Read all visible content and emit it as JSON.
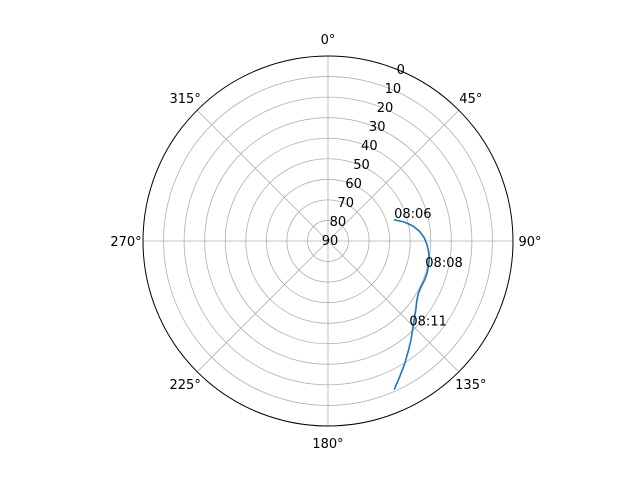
{
  "chart_data": {
    "type": "line",
    "projection": "polar",
    "theta_zero": "top",
    "theta_direction": "clockwise",
    "radial_axis": {
      "label": "",
      "inverted": true,
      "range": [
        90,
        0
      ],
      "ticks": [
        "0",
        "10",
        "20",
        "30",
        "40",
        "50",
        "60",
        "70",
        "80",
        "90"
      ],
      "tick_values": [
        0,
        10,
        20,
        30,
        40,
        50,
        60,
        70,
        80,
        90
      ]
    },
    "angular_axis": {
      "label": "",
      "tick_values": [
        0,
        45,
        90,
        135,
        180,
        225,
        270,
        315
      ],
      "tick_labels": [
        "0°",
        "45°",
        "90°",
        "135°",
        "180°",
        "225°",
        "270°",
        "315°"
      ]
    },
    "grid": true,
    "series": [
      {
        "color": "#1f77b4",
        "azimuth_deg": [
          72.0,
          76.0,
          80.0,
          84.0,
          88.0,
          92.0,
          96.0,
          100.0,
          104.0,
          108.0,
          112.0,
          116.0,
          120.0,
          124.0,
          128.0,
          132.0,
          136.0,
          140.0,
          144.0,
          148.0,
          152.0,
          156.0
        ],
        "elevation_deg": [
          56.3,
          51.8,
          48.0,
          45.2,
          43.2,
          41.8,
          40.8,
          40.0,
          39.6,
          39.3,
          39.3,
          39.5,
          39.2,
          37.9,
          35.8,
          33.5,
          30.7,
          27.2,
          23.6,
          19.6,
          15.5,
          10.8
        ]
      }
    ],
    "annotations": [
      {
        "text": "08:06",
        "azimuth_deg": 71.0,
        "elevation_deg": 56.0
      },
      {
        "text": "08:08",
        "azimuth_deg": 105.0,
        "elevation_deg": 41.0
      },
      {
        "text": "08:11",
        "azimuth_deg": 136.0,
        "elevation_deg": 33.0
      }
    ]
  }
}
